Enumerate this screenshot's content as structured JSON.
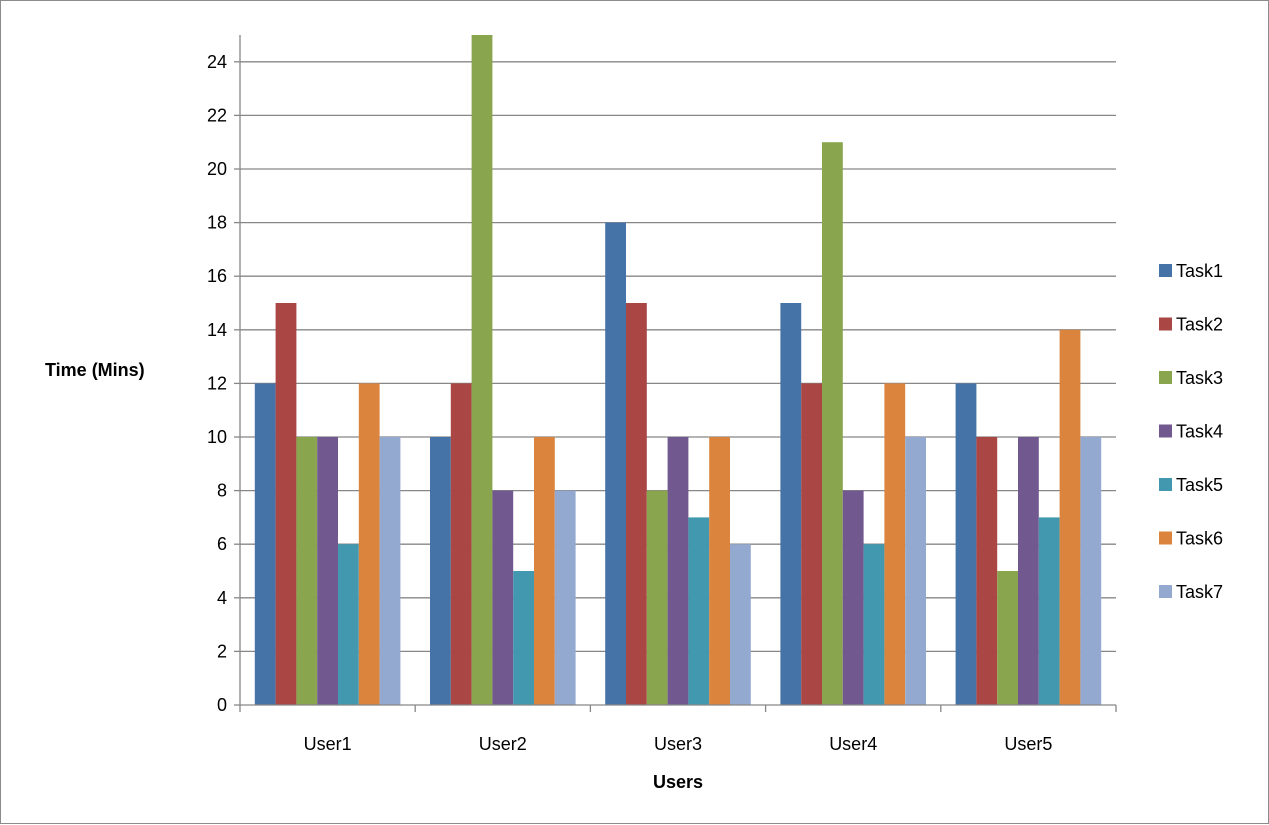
{
  "chart_data": {
    "type": "bar",
    "title": "",
    "xlabel": "Users",
    "ylabel": "Time (Mins)",
    "ylim": [
      0,
      25
    ],
    "yticks": [
      0,
      2,
      4,
      6,
      8,
      10,
      12,
      14,
      16,
      18,
      20,
      22,
      24
    ],
    "grid": true,
    "legend_position": "right",
    "categories": [
      "User1",
      "User2",
      "User3",
      "User4",
      "User5"
    ],
    "series": [
      {
        "name": "Task1",
        "color": "#4572A7",
        "values": [
          12,
          10,
          18,
          15,
          12
        ]
      },
      {
        "name": "Task2",
        "color": "#AA4643",
        "values": [
          15,
          12,
          15,
          12,
          10
        ]
      },
      {
        "name": "Task3",
        "color": "#89A54E",
        "values": [
          10,
          25,
          8,
          21,
          5
        ]
      },
      {
        "name": "Task4",
        "color": "#71588F",
        "values": [
          10,
          8,
          10,
          8,
          10
        ]
      },
      {
        "name": "Task5",
        "color": "#4198AF",
        "values": [
          6,
          5,
          7,
          6,
          7
        ]
      },
      {
        "name": "Task6",
        "color": "#DB843D",
        "values": [
          12,
          10,
          10,
          12,
          14
        ]
      },
      {
        "name": "Task7",
        "color": "#93A9CF",
        "values": [
          10,
          8,
          6,
          10,
          10
        ]
      }
    ]
  }
}
